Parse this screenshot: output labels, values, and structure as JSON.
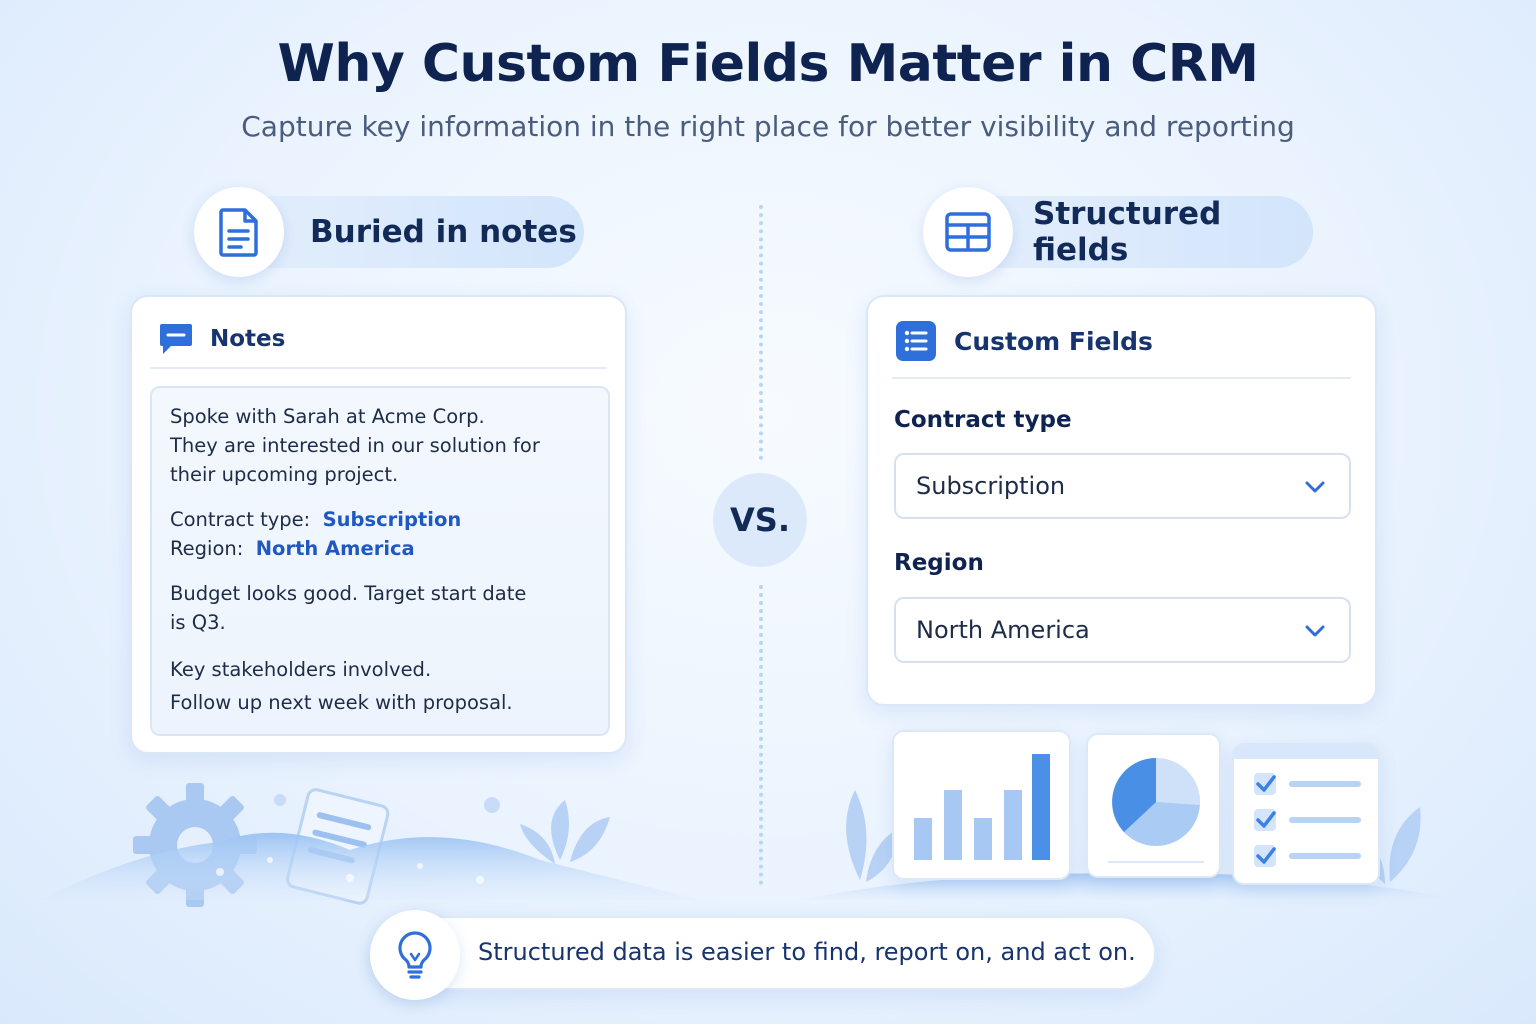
{
  "title": "Why Custom Fields Matter in CRM",
  "subtitle": "Capture key information in the right place for better visibility and reporting",
  "left": {
    "section_label": "Buried in notes",
    "section_icon": "document-icon",
    "card_title": "Notes",
    "card_icon": "chat-bubble-icon",
    "paragraph1": [
      "Spoke with Sarah at Acme Corp.",
      "They are interested in our solution for",
      "their upcoming project."
    ],
    "contract_label": "Contract type:",
    "contract_value": "Subscription",
    "region_label": "Region:",
    "region_value": "North America",
    "paragraph3": [
      "Budget looks good. Target start date",
      "is Q3."
    ],
    "paragraph4": [
      "Key stakeholders involved.",
      "Follow up next week with proposal."
    ]
  },
  "vs_label": "VS.",
  "right": {
    "section_label": "Structured fields",
    "section_icon": "table-icon",
    "card_title": "Custom Fields",
    "card_icon": "list-icon",
    "fields": [
      {
        "label": "Contract type",
        "value": "Subscription"
      },
      {
        "label": "Region",
        "value": "North America"
      }
    ]
  },
  "callout": {
    "icon": "lightbulb-icon",
    "text": "Structured data is easier to find, report on, and act on."
  },
  "colors": {
    "primary": "#1f58c2",
    "accent": "#4a90e8",
    "title": "#0f2350",
    "background": "#eaf3fe"
  }
}
